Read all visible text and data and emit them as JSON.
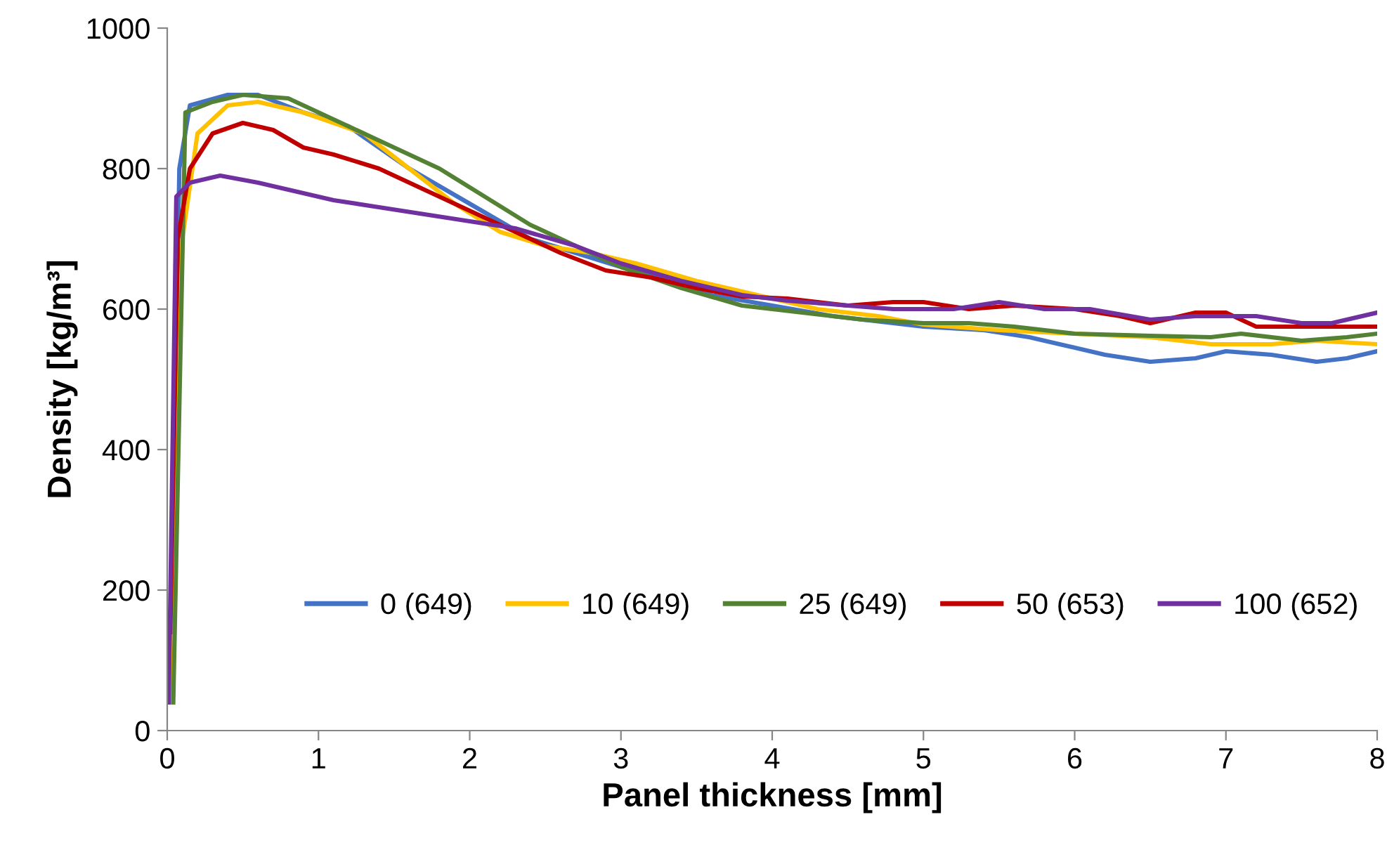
{
  "chart_data": {
    "type": "line",
    "xlabel": "Panel thickness [mm]",
    "ylabel": "Density [kg/m³]",
    "xlim": [
      0,
      8
    ],
    "xticks": [
      0,
      1,
      2,
      3,
      4,
      5,
      6,
      7,
      8
    ],
    "ylim": [
      0,
      1000
    ],
    "yticks": [
      0,
      200,
      400,
      600,
      800,
      1000
    ],
    "grid": false,
    "legend": "bottom",
    "marker": "none",
    "line_style": "solid",
    "series": [
      {
        "name": "0 (649)",
        "color": "#4472c4",
        "x": [
          0.02,
          0.08,
          0.15,
          0.4,
          0.6,
          0.9,
          1.2,
          1.6,
          2.0,
          2.4,
          2.7,
          3.0,
          3.3,
          3.6,
          4.0,
          4.4,
          4.8,
          5.0,
          5.4,
          5.7,
          5.9,
          6.2,
          6.5,
          6.8,
          7.0,
          7.3,
          7.6,
          7.8,
          8.0
        ],
        "values": [
          40,
          800,
          890,
          905,
          905,
          880,
          860,
          800,
          750,
          700,
          680,
          660,
          640,
          620,
          605,
          590,
          580,
          575,
          570,
          560,
          550,
          535,
          525,
          530,
          540,
          535,
          525,
          530,
          540
        ]
      },
      {
        "name": "10 (649)",
        "color": "#ffc000",
        "x": [
          0.03,
          0.1,
          0.2,
          0.4,
          0.6,
          0.9,
          1.3,
          1.6,
          1.9,
          2.2,
          2.5,
          2.8,
          3.1,
          3.5,
          3.9,
          4.3,
          4.7,
          5.0,
          5.5,
          6.0,
          6.5,
          6.9,
          7.3,
          7.6,
          8.0
        ],
        "values": [
          40,
          700,
          850,
          890,
          895,
          880,
          850,
          800,
          750,
          710,
          690,
          680,
          665,
          640,
          620,
          600,
          590,
          578,
          570,
          565,
          560,
          550,
          550,
          555,
          550
        ]
      },
      {
        "name": "25 (649)",
        "color": "#548235",
        "x": [
          0.04,
          0.12,
          0.3,
          0.5,
          0.8,
          1.1,
          1.4,
          1.8,
          2.1,
          2.4,
          2.7,
          3.0,
          3.4,
          3.8,
          4.2,
          4.6,
          5.0,
          5.3,
          5.6,
          6.0,
          6.5,
          6.9,
          7.1,
          7.5,
          7.8,
          8.0
        ],
        "values": [
          40,
          880,
          895,
          905,
          900,
          870,
          840,
          800,
          760,
          720,
          690,
          660,
          630,
          605,
          595,
          585,
          580,
          580,
          575,
          565,
          562,
          560,
          565,
          555,
          560,
          565
        ]
      },
      {
        "name": "50 (653)",
        "color": "#c00000",
        "x": [
          0.02,
          0.07,
          0.15,
          0.3,
          0.5,
          0.7,
          0.9,
          1.1,
          1.4,
          1.7,
          2.0,
          2.3,
          2.6,
          2.9,
          3.2,
          3.5,
          3.8,
          4.1,
          4.5,
          4.8,
          5.0,
          5.3,
          5.6,
          6.0,
          6.3,
          6.5,
          6.8,
          7.0,
          7.2,
          7.5,
          8.0
        ],
        "values": [
          140,
          700,
          800,
          850,
          865,
          855,
          830,
          820,
          800,
          770,
          740,
          710,
          680,
          655,
          645,
          630,
          618,
          615,
          605,
          610,
          610,
          600,
          605,
          600,
          590,
          580,
          595,
          595,
          575,
          575,
          575
        ]
      },
      {
        "name": "100 (652)",
        "color": "#7030a0",
        "x": [
          0.01,
          0.06,
          0.15,
          0.35,
          0.6,
          0.8,
          1.1,
          1.4,
          1.7,
          2.0,
          2.3,
          2.7,
          3.0,
          3.4,
          3.8,
          4.1,
          4.5,
          4.8,
          5.2,
          5.5,
          5.8,
          6.1,
          6.5,
          6.8,
          7.2,
          7.5,
          7.7,
          8.0
        ],
        "values": [
          40,
          760,
          780,
          790,
          780,
          770,
          755,
          745,
          735,
          725,
          715,
          690,
          665,
          640,
          620,
          612,
          605,
          600,
          600,
          610,
          600,
          600,
          585,
          590,
          590,
          580,
          580,
          595
        ]
      }
    ]
  }
}
